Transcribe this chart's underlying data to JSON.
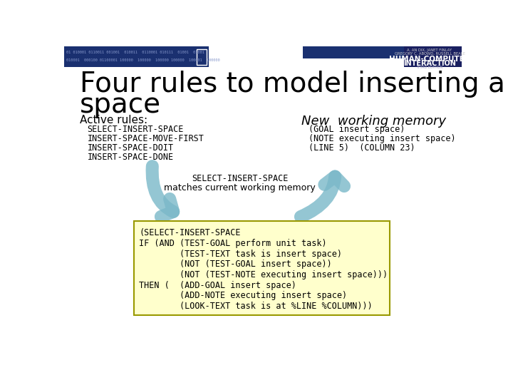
{
  "bg_color": "#ffffff",
  "title_line1": "Four rules to model inserting a",
  "title_line2": "space",
  "title_fontsize": 28,
  "active_rules_label": "Active rules:",
  "active_rules": [
    "SELECT-INSERT-SPACE",
    "INSERT-SPACE-MOVE-FIRST",
    "INSERT-SPACE-DOIT",
    "INSERT-SPACE-DONE"
  ],
  "new_working_label": "New  working memory",
  "working_memory": [
    "(GOAL insert space)",
    "(NOTE executing insert space)",
    "(LINE 5)  (COLUMN 23)"
  ],
  "arrow_label_line1": "SELECT-INSERT-SPACE",
  "arrow_label_line2": "matches current working memory",
  "code_box_lines": [
    "(SELECT-INSERT-SPACE",
    "IF (AND (TEST-GOAL perform unit task)",
    "        (TEST-TEXT task is insert space)",
    "        (NOT (TEST-GOAL insert space))",
    "        (NOT (TEST-NOTE executing insert space)))",
    "THEN (  (ADD-GOAL insert space)",
    "        (ADD-NOTE executing insert space)",
    "        (LOOK-TEXT task is at %LINE %COLUMN)))"
  ],
  "code_box_bg": "#ffffcc",
  "code_box_border": "#999900",
  "arrow_color": "#7ab8c8",
  "header_left_color": "#1a3070",
  "header_right_color": "#1a2060",
  "header_mid_color": "#1a3070"
}
